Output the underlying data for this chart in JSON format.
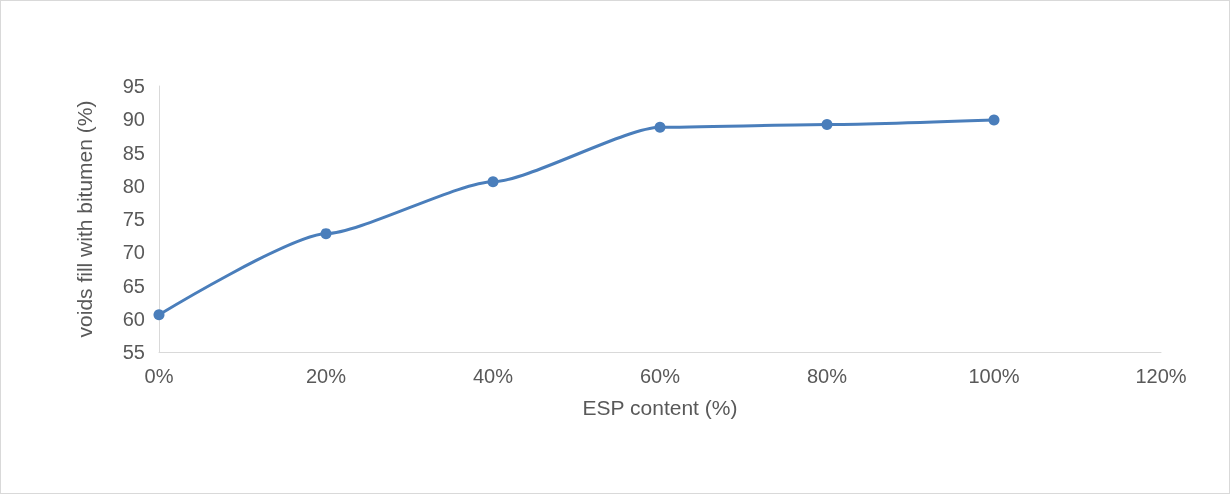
{
  "chart_data": {
    "type": "line",
    "xlabel": "ESP content (%)",
    "ylabel": "voids fill with bitumen (%)",
    "x": [
      0,
      20,
      40,
      60,
      80,
      100
    ],
    "series": [
      {
        "color": "#4a7ebb",
        "values": [
          60.6,
          72.8,
          80.6,
          88.8,
          89.2,
          89.9
        ]
      }
    ],
    "xlim": [
      0,
      120
    ],
    "xticks": [
      {
        "value": 0,
        "label": "0%"
      },
      {
        "value": 20,
        "label": "20%"
      },
      {
        "value": 40,
        "label": "40%"
      },
      {
        "value": 60,
        "label": "60%"
      },
      {
        "value": 80,
        "label": "80%"
      },
      {
        "value": 100,
        "label": "100%"
      },
      {
        "value": 120,
        "label": "120%"
      }
    ],
    "ylim": [
      55,
      95
    ],
    "yticks": [
      55,
      60,
      65,
      70,
      75,
      80,
      85,
      90,
      95
    ],
    "grid": false,
    "marker": "circle",
    "line_style": "solid"
  }
}
